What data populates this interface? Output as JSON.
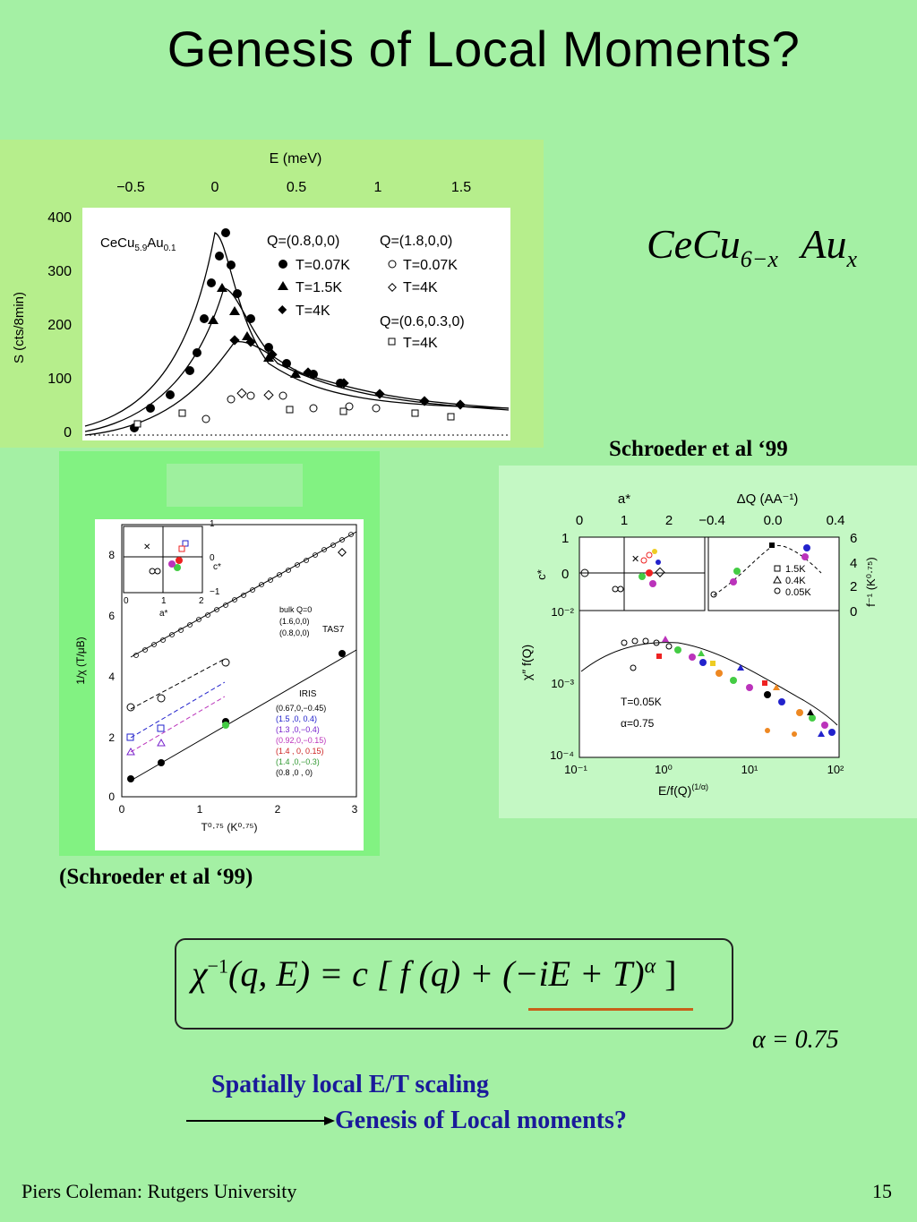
{
  "slide": {
    "title": "Genesis of Local Moments?",
    "compound_formula": {
      "base": "CeCu",
      "sub1": "6−x",
      "element": "Au",
      "sub2": "x"
    },
    "caption_right": "Schroeder et al ‘99",
    "caption_left": "(Schroeder et al ‘99)",
    "equation": {
      "lhs": "χ",
      "lhs_sup": "−1",
      "args": "(q, E) = c [ f (q) + (−iE + T)",
      "exponent": "α",
      "close": " ]"
    },
    "alpha_value": "α = 0.75",
    "scaling_line1": "Spatially local E/T scaling",
    "scaling_line2": "Genesis of Local moments?",
    "footer_left": "Piers Coleman: Rutgers University",
    "page_number": "15",
    "underline_color": "#c8601a"
  },
  "figure_top": {
    "top_axis_label": "E (meV)",
    "top_ticks": [
      "−0.5",
      "0",
      "0.5",
      "1",
      "1.5"
    ],
    "y_label": "S (cts/8min)",
    "y_ticks": [
      "400",
      "300",
      "200",
      "100",
      "0"
    ],
    "compound": {
      "base": "CeCu",
      "sub1": "5.9",
      "mid": "Au",
      "sub2": "0.1"
    },
    "legend_col1_head": "Q=(0.8,0,0)",
    "legend_col1": [
      "T=0.07K",
      "T=1.5K",
      "T=4K"
    ],
    "legend_col2_head": "Q=(1.8,0,0)",
    "legend_col2": [
      "T=0.07K",
      "T=4K"
    ],
    "legend_col3_head": "Q=(0.6,0.3,0)",
    "legend_col3": [
      "T=4K"
    ]
  },
  "figure_left": {
    "y_label": "1/χ (T/μB)",
    "x_label": "T⁰·⁷⁵ (K⁰·⁷⁵)",
    "x_ticks": [
      "0",
      "1",
      "2",
      "3"
    ],
    "y_ticks": [
      "8",
      "6",
      "4",
      "2",
      "0"
    ],
    "inset_x_label": "a*",
    "inset_y_label": "c*",
    "inset_x_ticks": [
      "0",
      "1",
      "2"
    ],
    "inset_y_ticks": [
      "1",
      "0",
      "−1"
    ],
    "legend_tas": [
      "bulk Q=0",
      "(1.6,0,0)",
      "(0.8,0,0)"
    ],
    "tas_label": "TAS7",
    "iris_label": "IRIS",
    "legend_iris": [
      "(0.67,0,−0.45)",
      "(1.5 ,0, 0.4)",
      "(1.3 ,0,−0.4)",
      "(0.92,0,−0.15)",
      "(1.4 , 0, 0.15)",
      "(1.4 ,0,−0.3)",
      "(0.8 ,0 , 0)"
    ]
  },
  "figure_right": {
    "top_left_label": "a*",
    "top_left_ticks": [
      "0",
      "1",
      "2"
    ],
    "top_right_label": "ΔQ (AA⁻¹)",
    "top_right_ticks": [
      "−0.4",
      "0.0",
      "0.4"
    ],
    "right_ticks": [
      "6",
      "4",
      "2",
      "0"
    ],
    "right_label": "f⁻¹ (K⁰·⁷⁵)",
    "inset_y_label": "c*",
    "inset_y_ticks": [
      "1",
      "0"
    ],
    "y_label": "χ″ f(Q)",
    "y_ticks": [
      "10⁻²",
      "10⁻³",
      "10⁻⁴"
    ],
    "x_ticks": [
      "10⁻¹",
      "10⁰",
      "10¹",
      "10²"
    ],
    "x_label": "E/f(Q)",
    "x_label_sup": "(1/α)",
    "inset_legend": [
      "1.5K",
      "0.4K",
      "0.05K"
    ],
    "note1": "T=0.05K",
    "note2": "α=0.75"
  }
}
